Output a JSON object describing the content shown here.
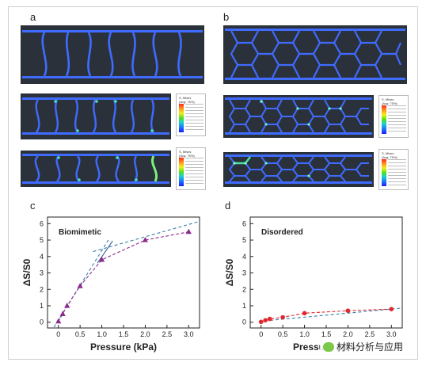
{
  "panels": {
    "a": "a",
    "b": "b",
    "c": "c",
    "d": "d"
  },
  "colors": {
    "sim_bg": "#2b313a",
    "strut": "#3f6bff",
    "triangle_series": "#8a2b8c",
    "circle_series": "#e0282f",
    "fit_dash": "#3a7fa8",
    "fit_solid": "#3a5f9f"
  },
  "legend": {
    "title": "S, Mises\n(Avg: 75%)"
  },
  "watermark": {
    "icon": "wechat-icon",
    "text": "材料分析与应用"
  },
  "chart_data": [
    {
      "type": "line",
      "panel": "c",
      "annotation": "Biomimetic",
      "xlabel": "Pressure (kPa)",
      "ylabel": "ΔS/S0",
      "xlim": [
        -0.25,
        3.25
      ],
      "ylim": [
        -0.35,
        6.4
      ],
      "xticks": [
        "0",
        "0.5",
        "1.0",
        "1.5",
        "2.0",
        "2.5",
        "3.0"
      ],
      "yticks": [
        "0",
        "1",
        "2",
        "3",
        "4",
        "5",
        "6"
      ],
      "series": [
        {
          "marker": "triangle",
          "x": [
            0,
            0.1,
            0.2,
            0.5,
            1.0,
            2.0,
            3.0
          ],
          "y": [
            0.05,
            0.5,
            1.0,
            2.2,
            3.8,
            5.0,
            5.5
          ]
        }
      ],
      "fits": [
        {
          "style": "dashed",
          "x": [
            -0.1,
            1.15
          ],
          "y": [
            -0.3,
            5.0
          ]
        },
        {
          "style": "solid",
          "x": [
            0.9,
            1.25
          ],
          "y": [
            3.6,
            4.95
          ]
        },
        {
          "style": "dashed",
          "x": [
            0.8,
            3.2
          ],
          "y": [
            4.3,
            6.1
          ]
        }
      ],
      "grid": false
    },
    {
      "type": "line",
      "panel": "d",
      "annotation": "Disordered",
      "xlabel": "Pressure (kPa)",
      "ylabel": "ΔS/S0",
      "xlim": [
        -0.25,
        3.25
      ],
      "ylim": [
        -0.35,
        6.4
      ],
      "xticks": [
        "0",
        "0.5",
        "1.0",
        "1.5",
        "2.0",
        "2.5",
        "3.0"
      ],
      "yticks": [
        "0",
        "1",
        "2",
        "3",
        "4",
        "5",
        "6"
      ],
      "series": [
        {
          "marker": "circle",
          "x": [
            0,
            0.1,
            0.2,
            0.5,
            1.0,
            2.0,
            3.0
          ],
          "y": [
            0.02,
            0.12,
            0.2,
            0.3,
            0.55,
            0.7,
            0.8
          ]
        }
      ],
      "fits": [
        {
          "style": "dashed",
          "x": [
            -0.05,
            3.2
          ],
          "y": [
            0.05,
            0.85
          ]
        }
      ],
      "grid": false
    }
  ]
}
